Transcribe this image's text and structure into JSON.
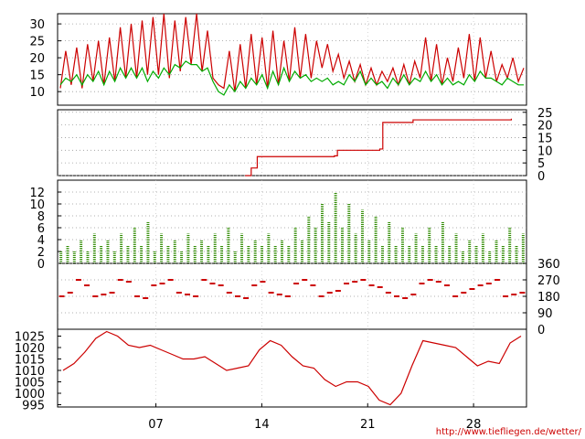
{
  "chart_data": [
    {
      "type": "line",
      "panel": "temperature",
      "ylim": [
        6,
        33
      ],
      "yticks": [
        10,
        15,
        20,
        25,
        30
      ],
      "ytick_side": "left",
      "grid": true,
      "series": [
        {
          "color": "#cc0000",
          "values": [
            11,
            22,
            12,
            23,
            11,
            24,
            13,
            25,
            12,
            26,
            13,
            29,
            14,
            30,
            14,
            31,
            15,
            32,
            15,
            33,
            14,
            31,
            16,
            32,
            18,
            33,
            16,
            28,
            14,
            12,
            11,
            22,
            10,
            24,
            11,
            27,
            12,
            26,
            11,
            28,
            12,
            25,
            13,
            29,
            14,
            27,
            14,
            25,
            17,
            24,
            16,
            21,
            14,
            19,
            13,
            18,
            12,
            17,
            12,
            16,
            13,
            17,
            12,
            18,
            12,
            19,
            14,
            26,
            13,
            24,
            12,
            20,
            13,
            23,
            14,
            27,
            13,
            26,
            14,
            22,
            13,
            18,
            14,
            20,
            13,
            17
          ]
        },
        {
          "color": "#00aa00",
          "values": [
            12,
            14,
            13,
            15,
            12,
            15,
            13,
            16,
            12,
            16,
            13,
            17,
            14,
            17,
            14,
            17,
            13,
            16,
            14,
            17,
            15,
            18,
            17,
            19,
            18,
            18,
            16,
            17,
            13,
            10,
            9,
            12,
            10,
            13,
            11,
            14,
            12,
            15,
            11,
            16,
            12,
            17,
            13,
            16,
            14,
            15,
            13,
            14,
            13,
            14,
            12,
            13,
            12,
            15,
            13,
            16,
            12,
            14,
            12,
            13,
            11,
            14,
            12,
            15,
            12,
            14,
            13,
            16,
            13,
            15,
            12,
            14,
            12,
            13,
            12,
            15,
            13,
            16,
            14,
            14,
            13,
            12,
            14,
            13,
            12,
            12
          ]
        }
      ]
    },
    {
      "type": "line",
      "panel": "precipitation",
      "ylim": [
        0,
        26
      ],
      "yticks": [
        0,
        5,
        10,
        15,
        20,
        25
      ],
      "ytick_side": "right",
      "grid": true,
      "x": [
        12.9,
        13.3,
        13.7,
        18.8,
        19.0,
        21.8,
        22.0,
        24.0,
        30.5
      ],
      "series": [
        {
          "color": "#cc0000",
          "values": [
            0,
            3,
            7.5,
            7.8,
            10,
            10.5,
            21,
            22,
            22.5
          ]
        }
      ]
    },
    {
      "type": "line",
      "panel": "wind",
      "ylim": [
        0,
        14
      ],
      "yticks": [
        0,
        2,
        4,
        6,
        8,
        10,
        12
      ],
      "ytick_side": "left",
      "grid": true,
      "series": [
        {
          "color": "#2e8b00",
          "values": [
            2,
            3,
            2,
            4,
            2,
            5,
            3,
            4,
            2,
            5,
            3,
            6,
            3,
            7,
            2,
            5,
            3,
            4,
            2,
            5,
            3,
            4,
            3,
            5,
            3,
            6,
            2,
            5,
            3,
            4,
            3,
            5,
            3,
            4,
            3,
            6,
            4,
            8,
            6,
            10,
            7,
            12,
            6,
            10,
            5,
            9,
            4,
            8,
            3,
            7,
            3,
            6,
            3,
            5,
            3,
            6,
            3,
            7,
            3,
            5,
            2,
            4,
            3,
            5,
            2,
            4,
            3,
            6,
            3,
            5
          ]
        }
      ]
    },
    {
      "type": "scatter",
      "panel": "wind_direction",
      "ylim": [
        0,
        360
      ],
      "yticks": [
        0,
        90,
        180,
        270,
        360
      ],
      "ytick_side": "right",
      "grid": true,
      "series": [
        {
          "color": "#cc0000",
          "values": [
            180,
            200,
            270,
            240,
            180,
            190,
            200,
            270,
            260,
            180,
            170,
            240,
            250,
            270,
            200,
            190,
            180,
            270,
            250,
            240,
            200,
            180,
            170,
            240,
            260,
            200,
            190,
            180,
            250,
            270,
            240,
            180,
            200,
            210,
            250,
            260,
            270,
            240,
            230,
            200,
            180,
            170,
            190,
            250,
            270,
            260,
            240,
            180,
            200,
            220,
            240,
            250,
            270,
            180,
            190,
            200
          ]
        }
      ]
    },
    {
      "type": "line",
      "panel": "pressure",
      "ylim": [
        994,
        1028
      ],
      "yticks": [
        995,
        1000,
        1005,
        1010,
        1015,
        1020,
        1025
      ],
      "ytick_side": "left",
      "grid": false,
      "x_ticks": [
        "07",
        "14",
        "21",
        "28"
      ],
      "series": [
        {
          "color": "#cc0000",
          "values": [
            1010,
            1013,
            1018,
            1024,
            1027,
            1025,
            1021,
            1020,
            1021,
            1019,
            1017,
            1015,
            1015,
            1016,
            1013,
            1010,
            1011,
            1012,
            1019,
            1023,
            1021,
            1016,
            1012,
            1011,
            1006,
            1003,
            1005,
            1005,
            1003,
            997,
            995,
            1000,
            1012,
            1023,
            1022,
            1021,
            1020,
            1016,
            1012,
            1014,
            1013,
            1022,
            1025
          ]
        }
      ]
    }
  ],
  "footer": {
    "credit": "http://www.tiefliegen.de/wetter/"
  }
}
